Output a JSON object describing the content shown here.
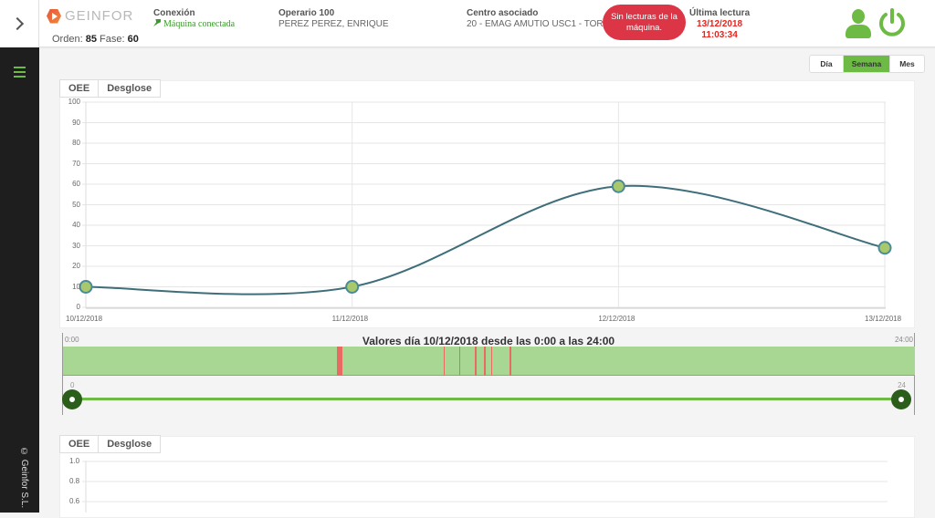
{
  "header": {
    "logo_text": "GEINFOR",
    "order_label": "Orden:",
    "order_value": "85",
    "phase_label": "Fase:",
    "phase_value": "60",
    "connection_title": "Conexión",
    "connection_status": "Máquina conectada",
    "operator_title": "Operario 100",
    "operator_name": "PEREZ PEREZ, ENRIQUE",
    "center_title": "Centro asociado",
    "center_value": "20 - EMAG AMUTIO USC1 - TORNO",
    "toast_message": "Sin lecturas de la máquina.",
    "last_reading_title": "Última lectura",
    "last_reading_date": "13/12/2018",
    "last_reading_time": "11:03:34"
  },
  "sidebar": {
    "copyright": "© Geinfor S.L."
  },
  "range_selector": {
    "options": [
      "Día",
      "Semana",
      "Mes"
    ],
    "selected": "Semana"
  },
  "panel1": {
    "tabs": [
      "OEE",
      "Desglose"
    ]
  },
  "panel2": {
    "tabs": [
      "OEE",
      "Desglose"
    ],
    "y_ticks": [
      "1.0",
      "0.8",
      "0.6"
    ]
  },
  "timeline": {
    "start_label": "0:00",
    "end_label": "24:00",
    "title": "Valores día 10/12/2018 desde las 0:00 a las 24:00",
    "slider_min": "0",
    "slider_max": "24",
    "red_segments_hours": [
      [
        7.71,
        7.88
      ],
      [
        10.72,
        10.76
      ],
      [
        11.16,
        11.19
      ],
      [
        11.61,
        11.64
      ],
      [
        11.87,
        11.9
      ],
      [
        12.06,
        12.09
      ],
      [
        12.58,
        12.61
      ]
    ]
  },
  "colors": {
    "accent_green": "#6dbb45",
    "line": "#3d6e7a",
    "point_fill": "#a7c96c",
    "alert_red": "#dc3545",
    "timeline_ok": "#a8d693",
    "timeline_stop": "#e86a63"
  },
  "chart_data": {
    "type": "line",
    "title": "",
    "categories": [
      "10/12/2018",
      "11/12/2018",
      "12/12/2018",
      "13/12/2018"
    ],
    "series": [
      {
        "name": "OEE",
        "values": [
          10,
          10,
          59,
          29
        ]
      }
    ],
    "xlabel": "",
    "ylabel": "",
    "ylim": [
      0,
      100
    ],
    "y_ticks": [
      0,
      10,
      20,
      30,
      40,
      50,
      60,
      70,
      80,
      90,
      100
    ],
    "grid": true,
    "smooth": true
  }
}
